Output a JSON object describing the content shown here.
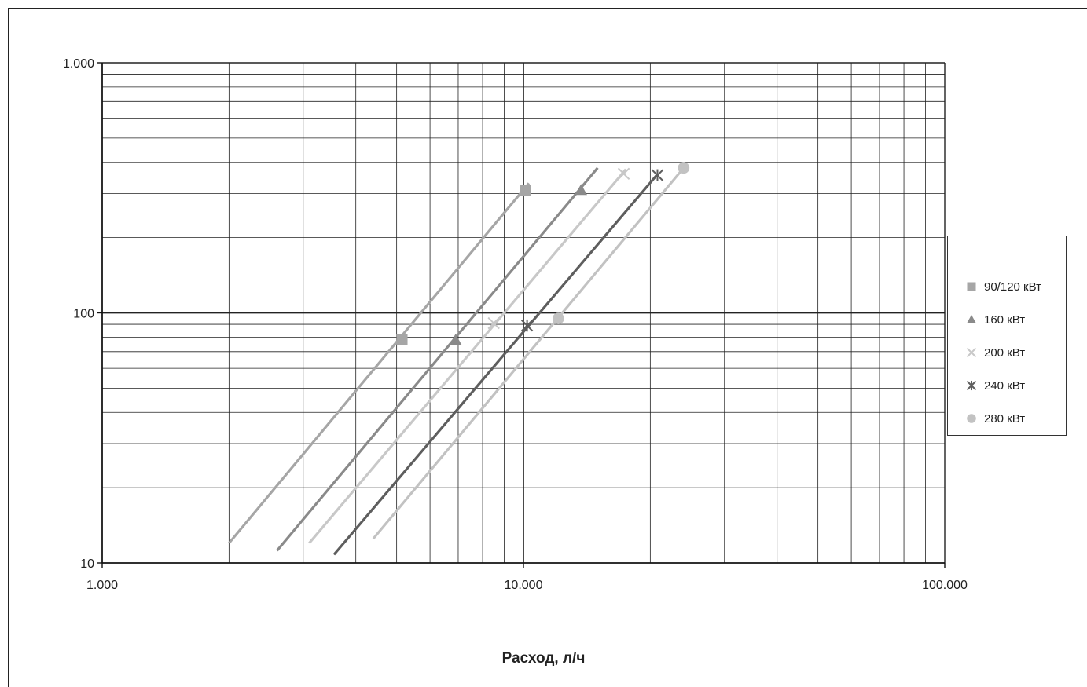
{
  "chart_data": {
    "type": "line",
    "xscale": "log",
    "yscale": "log",
    "xlim": [
      1000,
      100000
    ],
    "ylim": [
      10,
      1000
    ],
    "xlabel": "Расход, л/ч",
    "ylabel": "",
    "grid": true,
    "legend_position": "right",
    "x_ticks": [
      1000,
      10000,
      100000
    ],
    "x_tick_labels": [
      "1.000",
      "10.000",
      "100.000"
    ],
    "y_ticks": [
      10,
      100,
      1000
    ],
    "y_tick_labels": [
      "10",
      "100",
      "1.000"
    ],
    "series": [
      {
        "name": "90/120 кВт",
        "marker": "square",
        "color": "#a6a6a6",
        "line_x": [
          2000,
          10300
        ],
        "line_y": [
          12,
          330
        ],
        "points_x": [
          5150,
          10100
        ],
        "points_y": [
          78,
          310
        ]
      },
      {
        "name": "160 кВт",
        "marker": "triangle",
        "color": "#8a8a8a",
        "line_x": [
          2600,
          15000
        ],
        "line_y": [
          11.2,
          380
        ],
        "points_x": [
          6900,
          13700
        ],
        "points_y": [
          78,
          310
        ]
      },
      {
        "name": "200 кВт",
        "marker": "x",
        "color": "#c8c8c8",
        "line_x": [
          3100,
          17500
        ],
        "line_y": [
          12,
          375
        ],
        "points_x": [
          8500,
          17300
        ],
        "points_y": [
          91,
          360
        ]
      },
      {
        "name": "240 кВт",
        "marker": "asterisk",
        "color": "#5e5e5e",
        "line_x": [
          3550,
          20700
        ],
        "line_y": [
          10.8,
          355
        ],
        "points_x": [
          10200,
          20800
        ],
        "points_y": [
          89,
          355
        ]
      },
      {
        "name": "280 кВт",
        "marker": "circle",
        "color": "#c2c2c2",
        "line_x": [
          4400,
          24000
        ],
        "line_y": [
          12.5,
          380
        ],
        "points_x": [
          12100,
          24000
        ],
        "points_y": [
          95,
          380
        ]
      }
    ]
  }
}
